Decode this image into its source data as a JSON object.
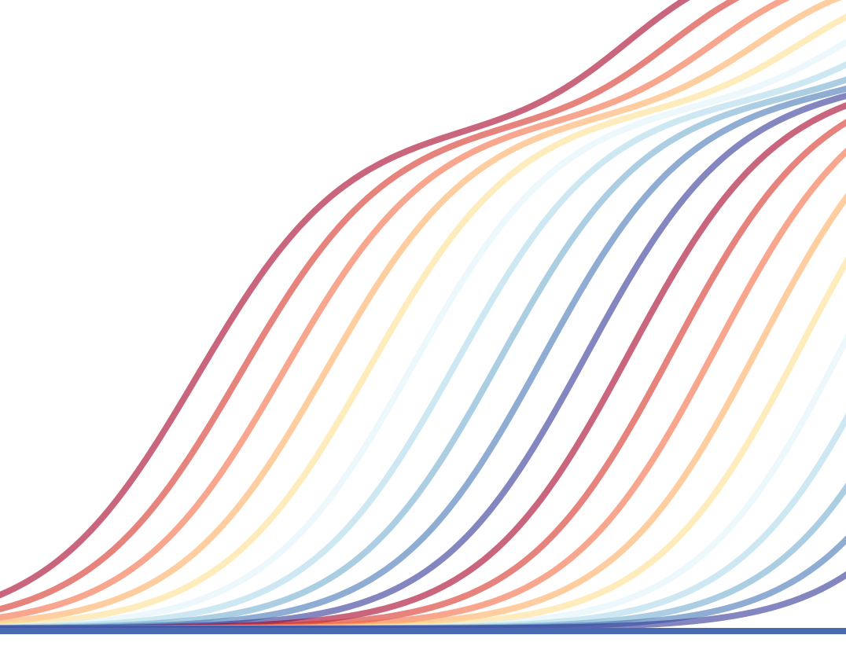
{
  "artwork": {
    "palette": [
      "#a50026",
      "#d73027",
      "#f46d43",
      "#fdae61",
      "#fee090",
      "#e0f3f8",
      "#abd9e9",
      "#74add1",
      "#4575b4",
      "#313695"
    ],
    "curve_opacity": 0.6,
    "baseline_color": "#4a6bb3",
    "curve_count": 20
  }
}
